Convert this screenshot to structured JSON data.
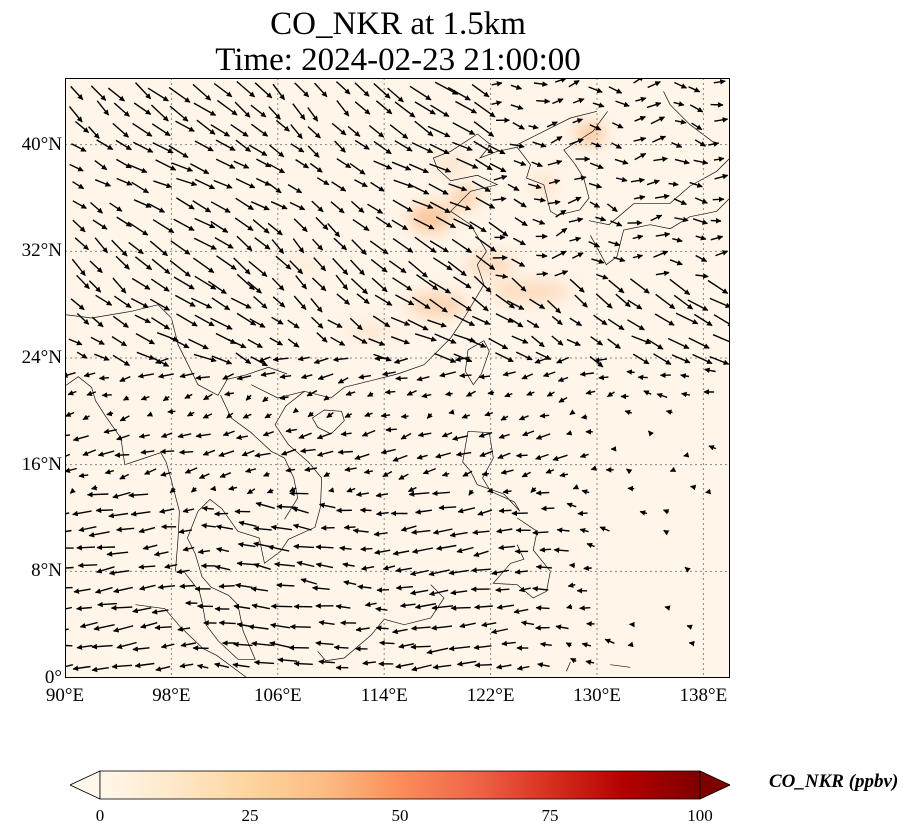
{
  "title": {
    "line1": "CO_NKR at 1.5km",
    "line2": "Time: 2024-02-23 21:00:00"
  },
  "map": {
    "projection": "PlateCarree",
    "lon_range": [
      90,
      140
    ],
    "lat_range": [
      0,
      45
    ],
    "gridlines": "dotted gray",
    "background_color": "#fff5e9",
    "plume_color": "#f9b57e",
    "wind_arrow_color": "#000000",
    "x_ticks": [
      "90°E",
      "98°E",
      "106°E",
      "114°E",
      "122°E",
      "130°E",
      "138°E"
    ],
    "y_ticks": [
      "0°",
      "8°N",
      "16°N",
      "24°N",
      "32°N",
      "40°N"
    ]
  },
  "colorbar": {
    "label": "CO_NKR (ppbv)",
    "ticks": [
      "0",
      "25",
      "50",
      "75",
      "100"
    ],
    "min": 0,
    "max": 100,
    "extend": "both",
    "colormap": "OrRd",
    "colors": [
      "#fff7ec",
      "#fee8c8",
      "#fdd49e",
      "#fdbb84",
      "#fc8d59",
      "#ef6548",
      "#d7301f",
      "#b30000",
      "#7f0000"
    ]
  }
}
